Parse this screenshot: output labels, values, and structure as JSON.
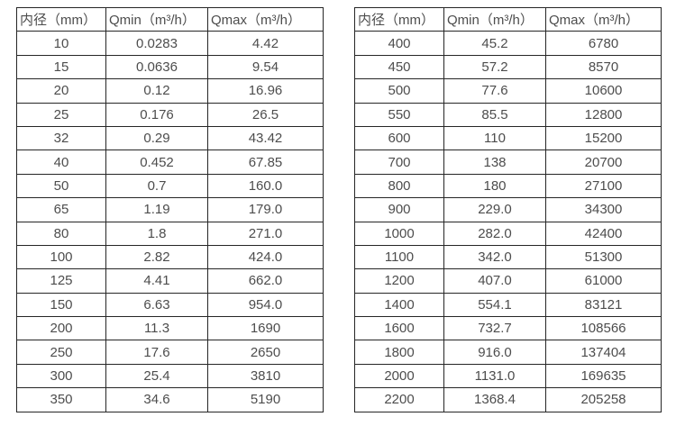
{
  "page": {
    "background_color": "#ffffff",
    "text_color": "#4d4d4d",
    "border_color": "#262626"
  },
  "tables": [
    {
      "title": "pipe-diameter-flow-table-small",
      "headers": [
        "内径（mm）",
        "Qmin（m³/h）",
        "Qmax（m³/h）"
      ],
      "rows": [
        [
          "10",
          "0.0283",
          "4.42"
        ],
        [
          "15",
          "0.0636",
          "9.54"
        ],
        [
          "20",
          "0.12",
          "16.96"
        ],
        [
          "25",
          "0.176",
          "26.5"
        ],
        [
          "32",
          "0.29",
          "43.42"
        ],
        [
          "40",
          "0.452",
          "67.85"
        ],
        [
          "50",
          "0.7",
          "160.0"
        ],
        [
          "65",
          "1.19",
          "179.0"
        ],
        [
          "80",
          "1.8",
          "271.0"
        ],
        [
          "100",
          "2.82",
          "424.0"
        ],
        [
          "125",
          "4.41",
          "662.0"
        ],
        [
          "150",
          "6.63",
          "954.0"
        ],
        [
          "200",
          "11.3",
          "1690"
        ],
        [
          "250",
          "17.6",
          "2650"
        ],
        [
          "300",
          "25.4",
          "3810"
        ],
        [
          "350",
          "34.6",
          "5190"
        ]
      ]
    },
    {
      "title": "pipe-diameter-flow-table-large",
      "headers": [
        "内径（mm）",
        "Qmin（m³/h）",
        "Qmax（m³/h）"
      ],
      "rows": [
        [
          "400",
          "45.2",
          "6780"
        ],
        [
          "450",
          "57.2",
          "8570"
        ],
        [
          "500",
          "77.6",
          "10600"
        ],
        [
          "550",
          "85.5",
          "12800"
        ],
        [
          "600",
          "110",
          "15200"
        ],
        [
          "700",
          "138",
          "20700"
        ],
        [
          "800",
          "180",
          "27100"
        ],
        [
          "900",
          "229.0",
          "34300"
        ],
        [
          "1000",
          "282.0",
          "42400"
        ],
        [
          "1100",
          "342.0",
          "51300"
        ],
        [
          "1200",
          "407.0",
          "61000"
        ],
        [
          "1400",
          "554.1",
          "83121"
        ],
        [
          "1600",
          "732.7",
          "108566"
        ],
        [
          "1800",
          "916.0",
          "137404"
        ],
        [
          "2000",
          "1131.0",
          "169635"
        ],
        [
          "2200",
          "1368.4",
          "205258"
        ]
      ]
    }
  ]
}
